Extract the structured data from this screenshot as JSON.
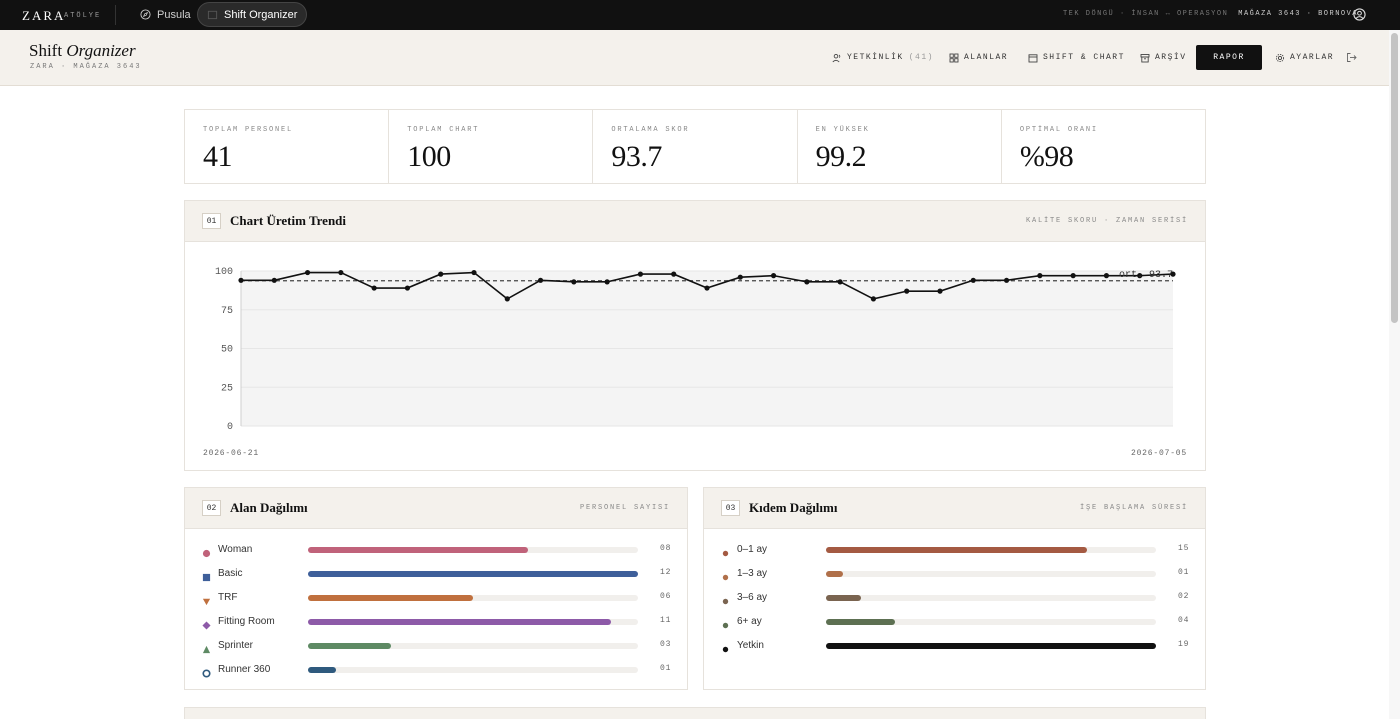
{
  "topbar": {
    "brand": "ZARA",
    "brand_sub": "ATÖLYE",
    "tabs": [
      {
        "label": "Pusula"
      },
      {
        "label": "Shift Organizer"
      }
    ],
    "right_dim": "TEK DÖNGÜ · İNSAN ↔ OPERASYON",
    "right_bright": "MAĞAZA 3643 · BORNOVA"
  },
  "header": {
    "title_main": "Shift",
    "title_italic": "Organizer",
    "subtitle": "ZARA · MAĞAZA 3643",
    "nav": [
      {
        "label": "YETKİNLİK",
        "count": "(41)",
        "icon": "users-icon"
      },
      {
        "label": "ALANLAR",
        "icon": "grid-icon"
      },
      {
        "label": "SHIFT & CHART",
        "icon": "calendar-icon"
      },
      {
        "label": "ARŞİV",
        "icon": "archive-icon"
      },
      {
        "label": "RAPOR",
        "icon": ""
      },
      {
        "label": "AYARLAR",
        "icon": "gear-icon"
      }
    ]
  },
  "stats": [
    {
      "label": "TOPLAM PERSONEL",
      "value": "41"
    },
    {
      "label": "TOPLAM CHART",
      "value": "100"
    },
    {
      "label": "ORTALAMA SKOR",
      "value": "93.7"
    },
    {
      "label": "EN YÜKSEK",
      "value": "99.2"
    },
    {
      "label": "OPTİMAL ORANI",
      "value": "%98"
    }
  ],
  "trend": {
    "num": "01",
    "title": "Chart Üretim Trendi",
    "subtitle": "KALİTE SKORU · ZAMAN SERİSİ",
    "start_date": "2026-06-21",
    "end_date": "2026-07-05"
  },
  "chart_data": {
    "type": "line",
    "ylim": [
      0,
      100
    ],
    "yticks": [
      "0",
      "25",
      "50",
      "75",
      "100"
    ],
    "values": [
      94,
      94,
      99,
      99,
      89,
      89,
      98,
      99,
      82,
      94,
      93,
      93,
      98,
      98,
      89,
      96,
      97,
      93,
      93,
      82,
      87,
      87,
      94,
      94,
      97,
      97,
      97,
      97,
      98
    ],
    "average": 93.7,
    "average_label": "ort. 93.7",
    "grid": true,
    "colors": {
      "line": "#111111",
      "area": "#f4f4f4",
      "avg": "#444444"
    }
  },
  "alan": {
    "num": "02",
    "title": "Alan Dağılımı",
    "subtitle": "PERSONEL SAYISI",
    "max": 12,
    "rows": [
      {
        "label": "Woman",
        "value": 8,
        "display": "08",
        "color": "#c0627a",
        "marker": "circle"
      },
      {
        "label": "Basic",
        "value": 12,
        "display": "12",
        "color": "#3e5f9a",
        "marker": "square"
      },
      {
        "label": "TRF",
        "value": 6,
        "display": "06",
        "color": "#c0703e",
        "marker": "triangle-down"
      },
      {
        "label": "Fitting Room",
        "value": 11,
        "display": "11",
        "color": "#8d5aa8",
        "marker": "diamond"
      },
      {
        "label": "Sprinter",
        "value": 3,
        "display": "03",
        "color": "#5e8a64",
        "marker": "triangle-up"
      },
      {
        "label": "Runner 360",
        "value": 1,
        "display": "01",
        "color": "#2f5a7e",
        "marker": "ring"
      }
    ]
  },
  "kidem": {
    "num": "03",
    "title": "Kıdem Dağılımı",
    "subtitle": "İŞE BAŞLAMA SÜRESİ",
    "max": 19,
    "rows": [
      {
        "label": "0–1 ay",
        "value": 15,
        "display": "15",
        "color": "#a45a42"
      },
      {
        "label": "1–3 ay",
        "value": 1,
        "display": "01",
        "color": "#b0704a"
      },
      {
        "label": "3–6 ay",
        "value": 2,
        "display": "02",
        "color": "#7a6450"
      },
      {
        "label": "6+ ay",
        "value": 4,
        "display": "04",
        "color": "#5d7052"
      },
      {
        "label": "Yetkin",
        "value": 19,
        "display": "19",
        "color": "#111111"
      }
    ]
  }
}
